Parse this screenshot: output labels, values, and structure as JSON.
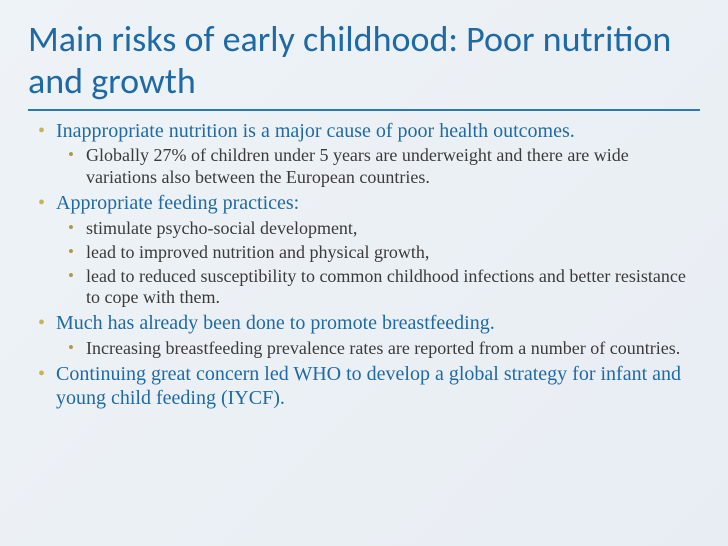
{
  "slide": {
    "title": "Main risks of early childhood: Poor nutrition and growth",
    "title_color": "#1f6aa5",
    "title_fontsize": 36,
    "underline_color": "#2a7ab0",
    "background_gradient": [
      "#eef3f7",
      "#e8edf3"
    ],
    "bullet_lvl1_color": "#c9b25a",
    "bullet_lvl2_color": "#b09a4a",
    "lvl1_text_color": "#1f6aa5",
    "lvl2_text_color": "#3a3a3a",
    "lvl1_fontsize": 20,
    "lvl2_fontsize": 18,
    "bullets": [
      {
        "text": "Inappropriate nutrition is a major cause of poor health outcomes.",
        "sub": [
          "Globally 27% of children under 5 years are underweight and there are wide variations also between the European countries."
        ]
      },
      {
        "text": "Appropriate feeding practices:",
        "sub": [
          "stimulate psycho-social development,",
          "lead to improved nutrition and physical growth,",
          "lead to reduced susceptibility to common childhood infections and better resistance to cope with them."
        ]
      },
      {
        "text": "Much has already been done to promote breastfeeding.",
        "sub": [
          "Increasing breastfeeding prevalence rates are reported from a number of countries."
        ]
      },
      {
        "text": "Continuing great concern led WHO to develop a global strategy for infant and young child feeding (IYCF).",
        "sub": []
      }
    ]
  }
}
